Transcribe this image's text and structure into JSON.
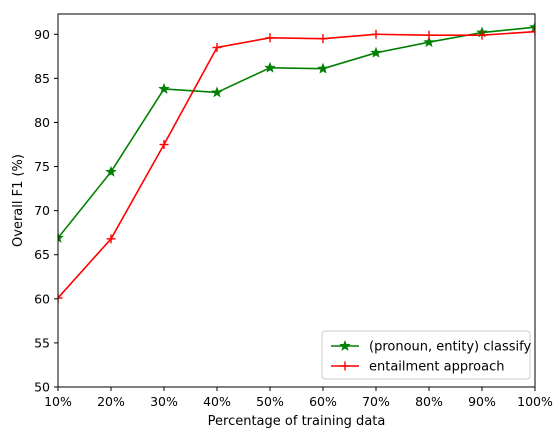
{
  "chart_data": {
    "type": "line",
    "title": "",
    "xlabel": "Percentage of training data",
    "ylabel": "Overall F1 (%)",
    "categories": [
      "10%",
      "20%",
      "30%",
      "40%",
      "50%",
      "60%",
      "70%",
      "80%",
      "90%",
      "100%"
    ],
    "x": [
      10,
      20,
      30,
      40,
      50,
      60,
      70,
      80,
      90,
      100
    ],
    "xlim": [
      10,
      100
    ],
    "ylim": [
      50,
      92.3
    ],
    "yticks": [
      50,
      55,
      60,
      65,
      70,
      75,
      80,
      85,
      90
    ],
    "grid": false,
    "legend_position": "lower-right",
    "series": [
      {
        "name": "(pronoun, entity) classify",
        "color": "#008000",
        "marker": "star",
        "values": [
          66.9,
          74.4,
          83.8,
          83.4,
          86.2,
          86.1,
          87.9,
          89.1,
          90.2,
          90.8
        ]
      },
      {
        "name": "entailment approach",
        "color": "#ff0000",
        "marker": "plus",
        "values": [
          60.1,
          66.8,
          77.5,
          88.5,
          89.6,
          89.5,
          90.0,
          89.9,
          89.9,
          90.3
        ]
      }
    ]
  }
}
